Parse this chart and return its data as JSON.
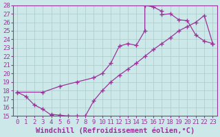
{
  "xlabel": "Windchill (Refroidissement éolien,°C)",
  "background_color": "#cce8e8",
  "line_color": "#993399",
  "marker": "+",
  "xlim": [
    -0.5,
    23.5
  ],
  "ylim": [
    15,
    28
  ],
  "xticks": [
    0,
    1,
    2,
    3,
    4,
    5,
    6,
    7,
    8,
    9,
    10,
    11,
    12,
    13,
    14,
    15,
    16,
    17,
    18,
    19,
    20,
    21,
    22,
    23
  ],
  "yticks": [
    15,
    16,
    17,
    18,
    19,
    20,
    21,
    22,
    23,
    24,
    25,
    26,
    27,
    28
  ],
  "points": [
    [
      0,
      17.8
    ],
    [
      1,
      17.3
    ],
    [
      2,
      16.3
    ],
    [
      3,
      15.8
    ],
    [
      4,
      15.1
    ],
    [
      4,
      15.2
    ],
    [
      5,
      15.1
    ],
    [
      6,
      15.0
    ],
    [
      7,
      15.0
    ],
    [
      8,
      15.0
    ],
    [
      9,
      16.8
    ],
    [
      10,
      18.0
    ],
    [
      11,
      19.0
    ],
    [
      12,
      19.8
    ],
    [
      13,
      20.5
    ],
    [
      14,
      21.2
    ],
    [
      15,
      22.0
    ],
    [
      16,
      22.8
    ],
    [
      17,
      23.5
    ],
    [
      18,
      24.2
    ],
    [
      19,
      25.0
    ],
    [
      20,
      25.5
    ],
    [
      21,
      26.0
    ],
    [
      22,
      26.8
    ],
    [
      23,
      23.5
    ]
  ],
  "points2": [
    [
      0,
      17.8
    ],
    [
      3,
      17.8
    ],
    [
      5,
      18.5
    ],
    [
      7,
      19.0
    ],
    [
      9,
      19.5
    ],
    [
      10,
      20.0
    ],
    [
      11,
      21.2
    ],
    [
      12,
      23.2
    ],
    [
      13,
      23.5
    ],
    [
      14,
      23.3
    ],
    [
      15,
      25.0
    ],
    [
      15,
      28.0
    ],
    [
      16,
      27.8
    ],
    [
      17,
      27.3
    ],
    [
      17,
      26.9
    ],
    [
      18,
      27.0
    ],
    [
      19,
      26.3
    ],
    [
      20,
      26.2
    ],
    [
      21,
      24.5
    ],
    [
      22,
      23.8
    ],
    [
      23,
      23.5
    ]
  ],
  "grid_color": "#aacccc",
  "tick_fontsize": 6.5,
  "label_fontsize": 7.5
}
